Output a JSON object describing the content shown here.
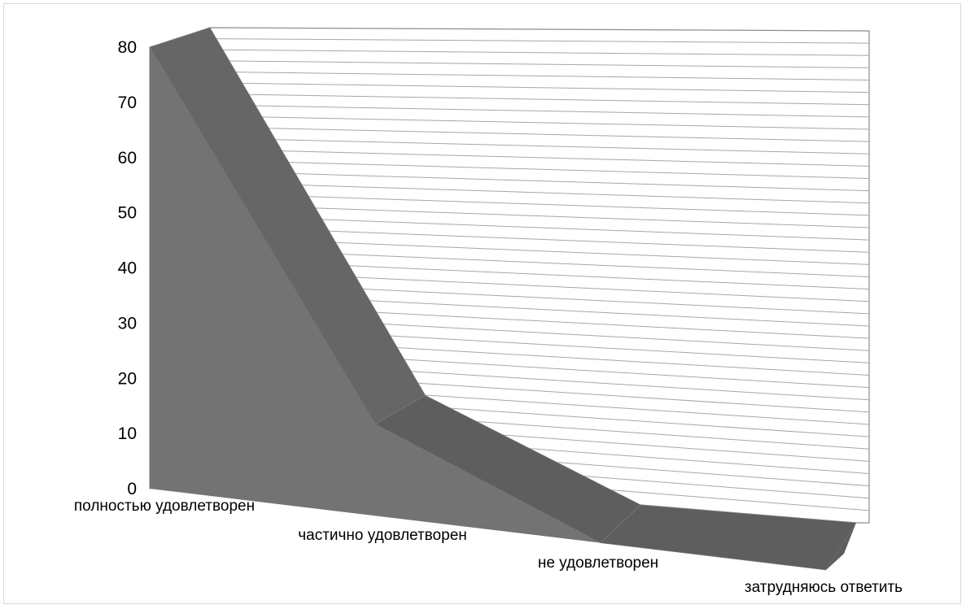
{
  "chart_data": {
    "type": "area",
    "style": "3d",
    "categories": [
      "полностью удовлетворен",
      "частично удовлетворен",
      "не удовлетворен",
      "затрудняюсь ответить"
    ],
    "series": [
      {
        "values": [
          80,
          16,
          0,
          0
        ]
      }
    ],
    "ylim": [
      0,
      80
    ],
    "yticks": [
      0,
      10,
      20,
      30,
      40,
      50,
      60,
      70,
      80
    ],
    "ytick_labels": [
      "0",
      "10",
      "20",
      "30",
      "40",
      "50",
      "60",
      "70",
      "80"
    ],
    "grid": true,
    "legend": "none",
    "colors": {
      "area_front": "#737373",
      "area_top": "#666666",
      "area_side": "#5e5e5e",
      "grid": "#a6a6a6"
    }
  }
}
